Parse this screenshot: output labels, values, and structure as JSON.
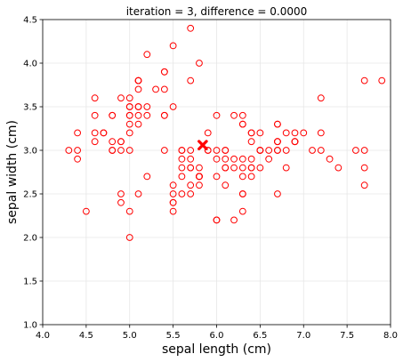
{
  "chart_data": {
    "type": "scatter",
    "title": "iteration = 3, difference = 0.0000",
    "xlabel": "sepal length (cm)",
    "ylabel": "sepal width (cm)",
    "xlim": [
      4.0,
      8.0
    ],
    "ylim": [
      1.0,
      4.5
    ],
    "xticks": [
      4.0,
      4.5,
      5.0,
      5.5,
      6.0,
      6.5,
      7.0,
      7.5,
      8.0
    ],
    "yticks": [
      1.0,
      1.5,
      2.0,
      2.5,
      3.0,
      3.5,
      4.0,
      4.5
    ],
    "xtick_labels": [
      "4.0",
      "4.5",
      "5.0",
      "5.5",
      "6.0",
      "6.5",
      "7.0",
      "7.5",
      "8.0"
    ],
    "ytick_labels": [
      "1.0",
      "1.5",
      "2.0",
      "2.5",
      "3.0",
      "3.5",
      "4.0",
      "4.5"
    ],
    "grid": true,
    "point_color": "#ff0000",
    "centroid_color": "#ff0000",
    "centroid_marker": "x",
    "centroid": {
      "x": 5.84,
      "y": 3.06
    },
    "points": [
      {
        "x": 5.1,
        "y": 3.5
      },
      {
        "x": 4.9,
        "y": 3.0
      },
      {
        "x": 4.7,
        "y": 3.2
      },
      {
        "x": 4.6,
        "y": 3.1
      },
      {
        "x": 5.0,
        "y": 3.6
      },
      {
        "x": 5.4,
        "y": 3.9
      },
      {
        "x": 4.6,
        "y": 3.4
      },
      {
        "x": 5.0,
        "y": 3.4
      },
      {
        "x": 4.4,
        "y": 2.9
      },
      {
        "x": 4.9,
        "y": 3.1
      },
      {
        "x": 5.4,
        "y": 3.7
      },
      {
        "x": 4.8,
        "y": 3.4
      },
      {
        "x": 4.8,
        "y": 3.0
      },
      {
        "x": 4.3,
        "y": 3.0
      },
      {
        "x": 5.8,
        "y": 4.0
      },
      {
        "x": 5.7,
        "y": 4.4
      },
      {
        "x": 5.4,
        "y": 3.9
      },
      {
        "x": 5.1,
        "y": 3.5
      },
      {
        "x": 5.7,
        "y": 3.8
      },
      {
        "x": 5.1,
        "y": 3.8
      },
      {
        "x": 5.4,
        "y": 3.4
      },
      {
        "x": 5.1,
        "y": 3.7
      },
      {
        "x": 4.6,
        "y": 3.6
      },
      {
        "x": 5.1,
        "y": 3.3
      },
      {
        "x": 4.8,
        "y": 3.4
      },
      {
        "x": 5.0,
        "y": 3.0
      },
      {
        "x": 5.0,
        "y": 3.4
      },
      {
        "x": 5.2,
        "y": 3.5
      },
      {
        "x": 5.2,
        "y": 3.4
      },
      {
        "x": 4.7,
        "y": 3.2
      },
      {
        "x": 4.8,
        "y": 3.1
      },
      {
        "x": 5.4,
        "y": 3.4
      },
      {
        "x": 5.2,
        "y": 4.1
      },
      {
        "x": 5.5,
        "y": 4.2
      },
      {
        "x": 4.9,
        "y": 3.1
      },
      {
        "x": 5.0,
        "y": 3.2
      },
      {
        "x": 5.5,
        "y": 3.5
      },
      {
        "x": 4.9,
        "y": 3.6
      },
      {
        "x": 4.4,
        "y": 3.0
      },
      {
        "x": 5.1,
        "y": 3.4
      },
      {
        "x": 5.0,
        "y": 3.5
      },
      {
        "x": 4.5,
        "y": 2.3
      },
      {
        "x": 4.4,
        "y": 3.2
      },
      {
        "x": 5.0,
        "y": 3.5
      },
      {
        "x": 5.1,
        "y": 3.8
      },
      {
        "x": 4.8,
        "y": 3.0
      },
      {
        "x": 5.1,
        "y": 3.8
      },
      {
        "x": 4.6,
        "y": 3.2
      },
      {
        "x": 5.3,
        "y": 3.7
      },
      {
        "x": 5.0,
        "y": 3.3
      },
      {
        "x": 7.0,
        "y": 3.2
      },
      {
        "x": 6.4,
        "y": 3.2
      },
      {
        "x": 6.9,
        "y": 3.1
      },
      {
        "x": 5.5,
        "y": 2.3
      },
      {
        "x": 6.5,
        "y": 2.8
      },
      {
        "x": 5.7,
        "y": 2.8
      },
      {
        "x": 6.3,
        "y": 3.3
      },
      {
        "x": 4.9,
        "y": 2.4
      },
      {
        "x": 6.6,
        "y": 2.9
      },
      {
        "x": 5.2,
        "y": 2.7
      },
      {
        "x": 5.0,
        "y": 2.0
      },
      {
        "x": 5.9,
        "y": 3.0
      },
      {
        "x": 6.0,
        "y": 2.2
      },
      {
        "x": 6.1,
        "y": 2.9
      },
      {
        "x": 5.6,
        "y": 2.9
      },
      {
        "x": 6.7,
        "y": 3.1
      },
      {
        "x": 5.6,
        "y": 3.0
      },
      {
        "x": 5.8,
        "y": 2.7
      },
      {
        "x": 6.2,
        "y": 2.2
      },
      {
        "x": 5.6,
        "y": 2.5
      },
      {
        "x": 5.9,
        "y": 3.2
      },
      {
        "x": 6.1,
        "y": 2.8
      },
      {
        "x": 6.3,
        "y": 2.5
      },
      {
        "x": 6.1,
        "y": 2.8
      },
      {
        "x": 6.4,
        "y": 2.9
      },
      {
        "x": 6.6,
        "y": 3.0
      },
      {
        "x": 6.8,
        "y": 2.8
      },
      {
        "x": 6.7,
        "y": 3.0
      },
      {
        "x": 6.0,
        "y": 2.9
      },
      {
        "x": 5.7,
        "y": 2.6
      },
      {
        "x": 5.5,
        "y": 2.4
      },
      {
        "x": 5.5,
        "y": 2.4
      },
      {
        "x": 5.8,
        "y": 2.7
      },
      {
        "x": 6.0,
        "y": 2.7
      },
      {
        "x": 5.4,
        "y": 3.0
      },
      {
        "x": 6.0,
        "y": 3.4
      },
      {
        "x": 6.7,
        "y": 3.1
      },
      {
        "x": 6.3,
        "y": 2.3
      },
      {
        "x": 5.6,
        "y": 3.0
      },
      {
        "x": 5.5,
        "y": 2.5
      },
      {
        "x": 5.5,
        "y": 2.6
      },
      {
        "x": 6.1,
        "y": 3.0
      },
      {
        "x": 5.8,
        "y": 2.6
      },
      {
        "x": 5.0,
        "y": 2.3
      },
      {
        "x": 5.6,
        "y": 2.7
      },
      {
        "x": 5.7,
        "y": 3.0
      },
      {
        "x": 5.7,
        "y": 2.9
      },
      {
        "x": 6.2,
        "y": 2.9
      },
      {
        "x": 5.1,
        "y": 2.5
      },
      {
        "x": 5.7,
        "y": 2.8
      },
      {
        "x": 6.3,
        "y": 3.3
      },
      {
        "x": 5.8,
        "y": 2.7
      },
      {
        "x": 7.1,
        "y": 3.0
      },
      {
        "x": 6.3,
        "y": 2.9
      },
      {
        "x": 6.5,
        "y": 3.0
      },
      {
        "x": 7.6,
        "y": 3.0
      },
      {
        "x": 4.9,
        "y": 2.5
      },
      {
        "x": 7.3,
        "y": 2.9
      },
      {
        "x": 6.7,
        "y": 2.5
      },
      {
        "x": 7.2,
        "y": 3.6
      },
      {
        "x": 6.5,
        "y": 3.2
      },
      {
        "x": 6.4,
        "y": 2.7
      },
      {
        "x": 6.8,
        "y": 3.0
      },
      {
        "x": 5.7,
        "y": 2.5
      },
      {
        "x": 5.8,
        "y": 2.8
      },
      {
        "x": 6.4,
        "y": 3.2
      },
      {
        "x": 6.5,
        "y": 3.0
      },
      {
        "x": 7.7,
        "y": 3.8
      },
      {
        "x": 7.7,
        "y": 2.6
      },
      {
        "x": 6.0,
        "y": 2.2
      },
      {
        "x": 6.9,
        "y": 3.2
      },
      {
        "x": 5.6,
        "y": 2.8
      },
      {
        "x": 7.7,
        "y": 2.8
      },
      {
        "x": 6.3,
        "y": 2.7
      },
      {
        "x": 6.7,
        "y": 3.3
      },
      {
        "x": 7.2,
        "y": 3.2
      },
      {
        "x": 6.2,
        "y": 2.8
      },
      {
        "x": 6.1,
        "y": 3.0
      },
      {
        "x": 6.4,
        "y": 2.8
      },
      {
        "x": 7.2,
        "y": 3.0
      },
      {
        "x": 7.4,
        "y": 2.8
      },
      {
        "x": 7.9,
        "y": 3.8
      },
      {
        "x": 6.4,
        "y": 2.8
      },
      {
        "x": 6.3,
        "y": 2.8
      },
      {
        "x": 6.1,
        "y": 2.6
      },
      {
        "x": 7.7,
        "y": 3.0
      },
      {
        "x": 6.3,
        "y": 3.4
      },
      {
        "x": 6.4,
        "y": 3.1
      },
      {
        "x": 6.0,
        "y": 3.0
      },
      {
        "x": 6.9,
        "y": 3.1
      },
      {
        "x": 6.7,
        "y": 3.1
      },
      {
        "x": 6.9,
        "y": 3.1
      },
      {
        "x": 5.8,
        "y": 2.7
      },
      {
        "x": 6.8,
        "y": 3.2
      },
      {
        "x": 6.7,
        "y": 3.3
      },
      {
        "x": 6.7,
        "y": 3.0
      },
      {
        "x": 6.3,
        "y": 2.5
      },
      {
        "x": 6.5,
        "y": 3.0
      },
      {
        "x": 6.2,
        "y": 3.4
      },
      {
        "x": 5.9,
        "y": 3.0
      }
    ]
  }
}
